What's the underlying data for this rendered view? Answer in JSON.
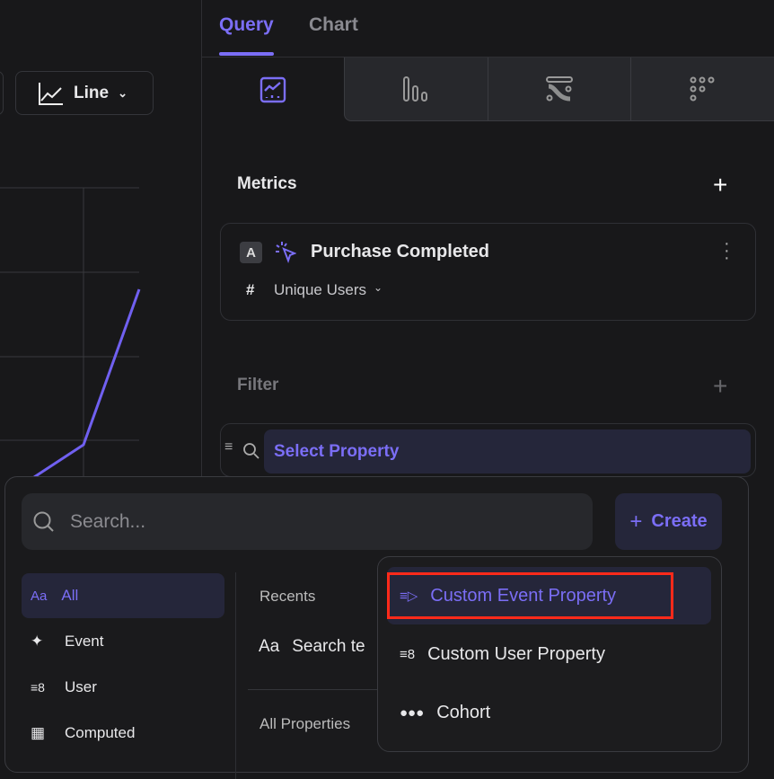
{
  "tabs": [
    {
      "label": "Query",
      "active": true
    },
    {
      "label": "Chart",
      "active": false
    }
  ],
  "chart_toolbar": {
    "chart_type_label": "Line",
    "icon": "line-chart-icon"
  },
  "view_icons": [
    "insights-icon",
    "bar-chart-icon",
    "flows-icon",
    "retention-icon"
  ],
  "metrics": {
    "title": "Metrics",
    "items": [
      {
        "badge": "A",
        "event": "Purchase Completed",
        "measure_prefix": "#",
        "measure": "Unique Users"
      }
    ]
  },
  "filter": {
    "title": "Filter",
    "select_label": "Select Property"
  },
  "popup": {
    "search_placeholder": "Search...",
    "create_label": "Create",
    "categories": [
      {
        "label": "All",
        "icon": "Aa",
        "active": true
      },
      {
        "label": "Event"
      },
      {
        "label": "User"
      },
      {
        "label": "Computed"
      }
    ],
    "recents_title": "Recents",
    "recent_item": "Search te",
    "recent_icon": "Aa",
    "all_properties_title": "All Properties"
  },
  "create_menu": {
    "items": [
      {
        "label": "Custom Event Property",
        "highlighted": true
      },
      {
        "label": "Custom User Property"
      },
      {
        "label": "Cohort"
      }
    ]
  },
  "colors": {
    "accent": "#7b6ef6",
    "highlight_box": "#ff2a1a",
    "background": "#18181a"
  }
}
